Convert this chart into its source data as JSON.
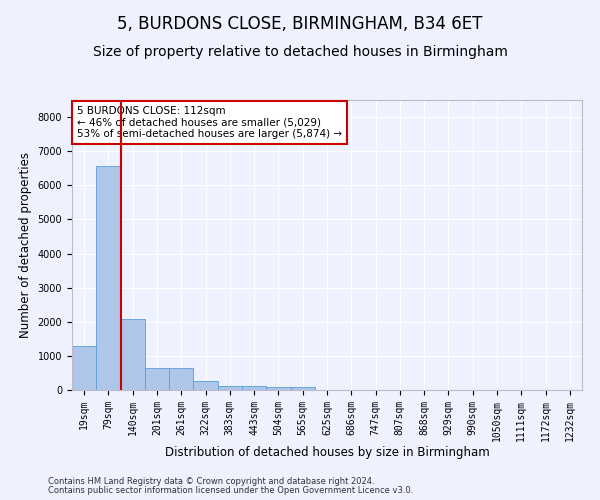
{
  "title": "5, BURDONS CLOSE, BIRMINGHAM, B34 6ET",
  "subtitle": "Size of property relative to detached houses in Birmingham",
  "xlabel": "Distribution of detached houses by size in Birmingham",
  "ylabel": "Number of detached properties",
  "footnote1": "Contains HM Land Registry data © Crown copyright and database right 2024.",
  "footnote2": "Contains public sector information licensed under the Open Government Licence v3.0.",
  "bar_color": "#aec6e8",
  "bar_edge_color": "#5a9fd4",
  "vline_color": "#cc0000",
  "vline_x": 1.5,
  "annotation_text": "5 BURDONS CLOSE: 112sqm\n← 46% of detached houses are smaller (5,029)\n53% of semi-detached houses are larger (5,874) →",
  "annotation_box_color": "#ffffff",
  "annotation_box_edge": "#cc0000",
  "categories": [
    "19sqm",
    "79sqm",
    "140sqm",
    "201sqm",
    "261sqm",
    "322sqm",
    "383sqm",
    "443sqm",
    "504sqm",
    "565sqm",
    "625sqm",
    "686sqm",
    "747sqm",
    "807sqm",
    "868sqm",
    "929sqm",
    "990sqm",
    "1050sqm",
    "1111sqm",
    "1172sqm",
    "1232sqm"
  ],
  "values": [
    1300,
    6580,
    2080,
    650,
    650,
    250,
    130,
    130,
    100,
    100,
    0,
    0,
    0,
    0,
    0,
    0,
    0,
    0,
    0,
    0,
    0
  ],
  "ylim": [
    0,
    8500
  ],
  "yticks": [
    0,
    1000,
    2000,
    3000,
    4000,
    5000,
    6000,
    7000,
    8000
  ],
  "background_color": "#eef2ff",
  "grid_color": "#ffffff",
  "title_fontsize": 12,
  "subtitle_fontsize": 10,
  "axis_label_fontsize": 8.5,
  "tick_fontsize": 7,
  "footnote_fontsize": 6,
  "annotation_fontsize": 7.5
}
